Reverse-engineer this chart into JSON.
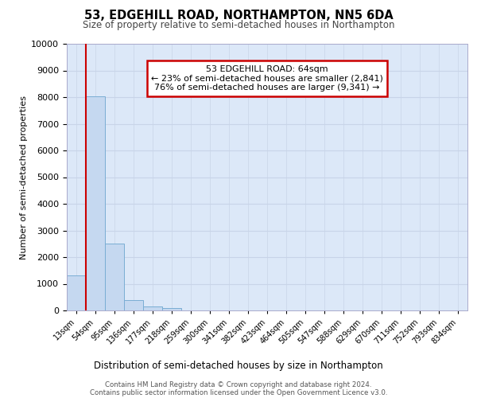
{
  "title1": "53, EDGEHILL ROAD, NORTHAMPTON, NN5 6DA",
  "title2": "Size of property relative to semi-detached houses in Northampton",
  "xlabel": "Distribution of semi-detached houses by size in Northampton",
  "ylabel": "Number of semi-detached properties",
  "footer1": "Contains HM Land Registry data © Crown copyright and database right 2024.",
  "footer2": "Contains public sector information licensed under the Open Government Licence v3.0.",
  "categories": [
    "13sqm",
    "54sqm",
    "95sqm",
    "136sqm",
    "177sqm",
    "218sqm",
    "259sqm",
    "300sqm",
    "341sqm",
    "382sqm",
    "423sqm",
    "464sqm",
    "505sqm",
    "547sqm",
    "588sqm",
    "629sqm",
    "670sqm",
    "711sqm",
    "752sqm",
    "793sqm",
    "834sqm"
  ],
  "values": [
    1320,
    8030,
    2520,
    390,
    150,
    80,
    0,
    0,
    0,
    0,
    0,
    0,
    0,
    0,
    0,
    0,
    0,
    0,
    0,
    0,
    0
  ],
  "bar_color": "#c5d8f0",
  "bar_edge_color": "#7aadd4",
  "highlight_bar_index": 1,
  "highlight_line_color": "#cc0000",
  "property_size": 64,
  "property_name": "53 EDGEHILL ROAD",
  "pct_smaller": 23,
  "pct_larger": 76,
  "n_smaller": 2841,
  "n_larger": 9341,
  "annotation_box_color": "#cc0000",
  "ylim": [
    0,
    10000
  ],
  "yticks": [
    0,
    1000,
    2000,
    3000,
    4000,
    5000,
    6000,
    7000,
    8000,
    9000,
    10000
  ],
  "grid_color": "#c8d4e8",
  "plot_bg_color": "#dce8f8"
}
